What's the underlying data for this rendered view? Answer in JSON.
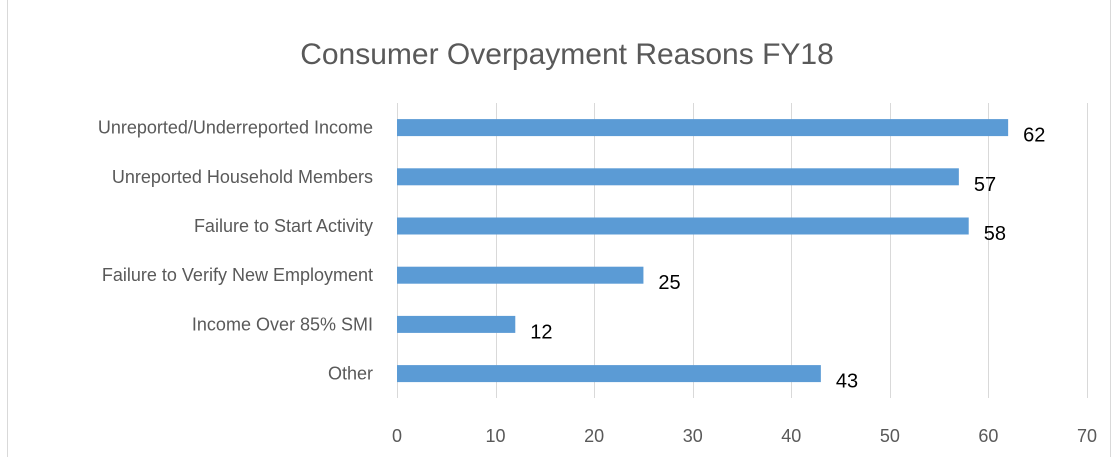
{
  "chart_data": {
    "type": "bar",
    "orientation": "horizontal",
    "title": "Consumer Overpayment Reasons FY18",
    "xlabel": "",
    "ylabel": "",
    "categories": [
      "Unreported/Underreported Income",
      "Unreported Household Members",
      "Failure to Start Activity",
      "Failure to Verify New Employment",
      "Income Over 85% SMI",
      "Other"
    ],
    "values": [
      62,
      57,
      58,
      25,
      12,
      43
    ],
    "value_labels": [
      "62",
      "57",
      "58",
      "25",
      "12",
      "43"
    ],
    "xlim": [
      0,
      70
    ],
    "xticks": [
      0,
      10,
      20,
      30,
      40,
      50,
      60,
      70
    ],
    "xtick_labels": [
      "0",
      "10",
      "20",
      "30",
      "40",
      "50",
      "60",
      "70"
    ],
    "grid": true,
    "legend": "none",
    "bar_color": "#5b9bd5",
    "grid_color": "#d9d9d9",
    "title_color": "#595959",
    "label_color": "#595959",
    "data_label_color": "#000000"
  }
}
